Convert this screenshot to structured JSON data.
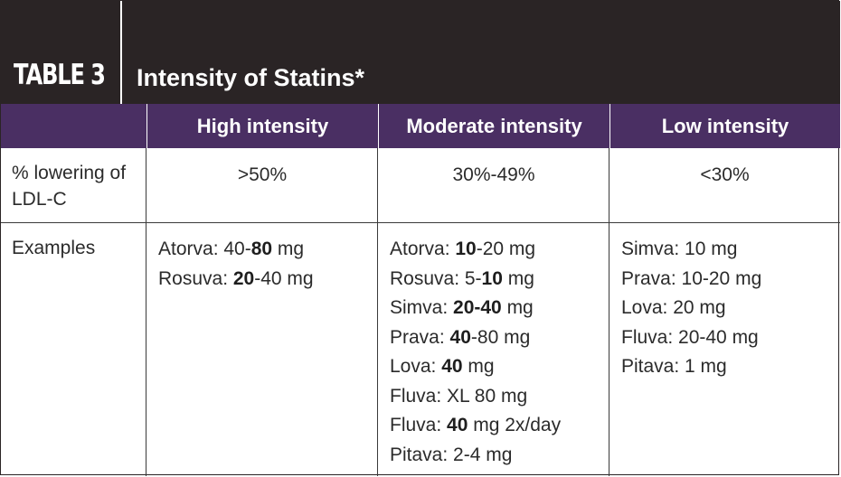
{
  "title": {
    "number": "TABLE 3",
    "text": "Intensity of Statins*"
  },
  "columns": [
    "",
    "High intensity",
    "Moderate intensity",
    "Low intensity"
  ],
  "rows": {
    "lowering": {
      "label": "% lowering of LDL-C",
      "values": [
        ">50%",
        "30%-49%",
        "<30%"
      ]
    },
    "examples": {
      "label": "Examples",
      "high": [
        {
          "pre": "Atorva: 40-",
          "bold": "80",
          "post": " mg"
        },
        {
          "pre": "Rosuva: ",
          "bold": "20",
          "post": "-40 mg"
        }
      ],
      "moderate": [
        {
          "pre": "Atorva: ",
          "bold": "10",
          "post": "-20 mg"
        },
        {
          "pre": "Rosuva: 5-",
          "bold": "10",
          "post": " mg"
        },
        {
          "pre": "Simva: ",
          "bold": "20-40",
          "post": " mg"
        },
        {
          "pre": "Prava: ",
          "bold": "40",
          "post": "-80 mg"
        },
        {
          "pre": "Lova: ",
          "bold": "40",
          "post": " mg"
        },
        {
          "pre": "Fluva: XL 80 mg",
          "bold": "",
          "post": ""
        },
        {
          "pre": "Fluva: ",
          "bold": "40",
          "post": " mg 2x/day"
        },
        {
          "pre": "Pitava: 2-4 mg",
          "bold": "",
          "post": ""
        }
      ],
      "low": [
        {
          "pre": "Simva: 10 mg",
          "bold": "",
          "post": ""
        },
        {
          "pre": "Prava: 10-20 mg",
          "bold": "",
          "post": ""
        },
        {
          "pre": "Lova: 20 mg",
          "bold": "",
          "post": ""
        },
        {
          "pre": "Fluva: 20-40 mg",
          "bold": "",
          "post": ""
        },
        {
          "pre": "Pitava: 1 mg",
          "bold": "",
          "post": ""
        }
      ]
    }
  }
}
